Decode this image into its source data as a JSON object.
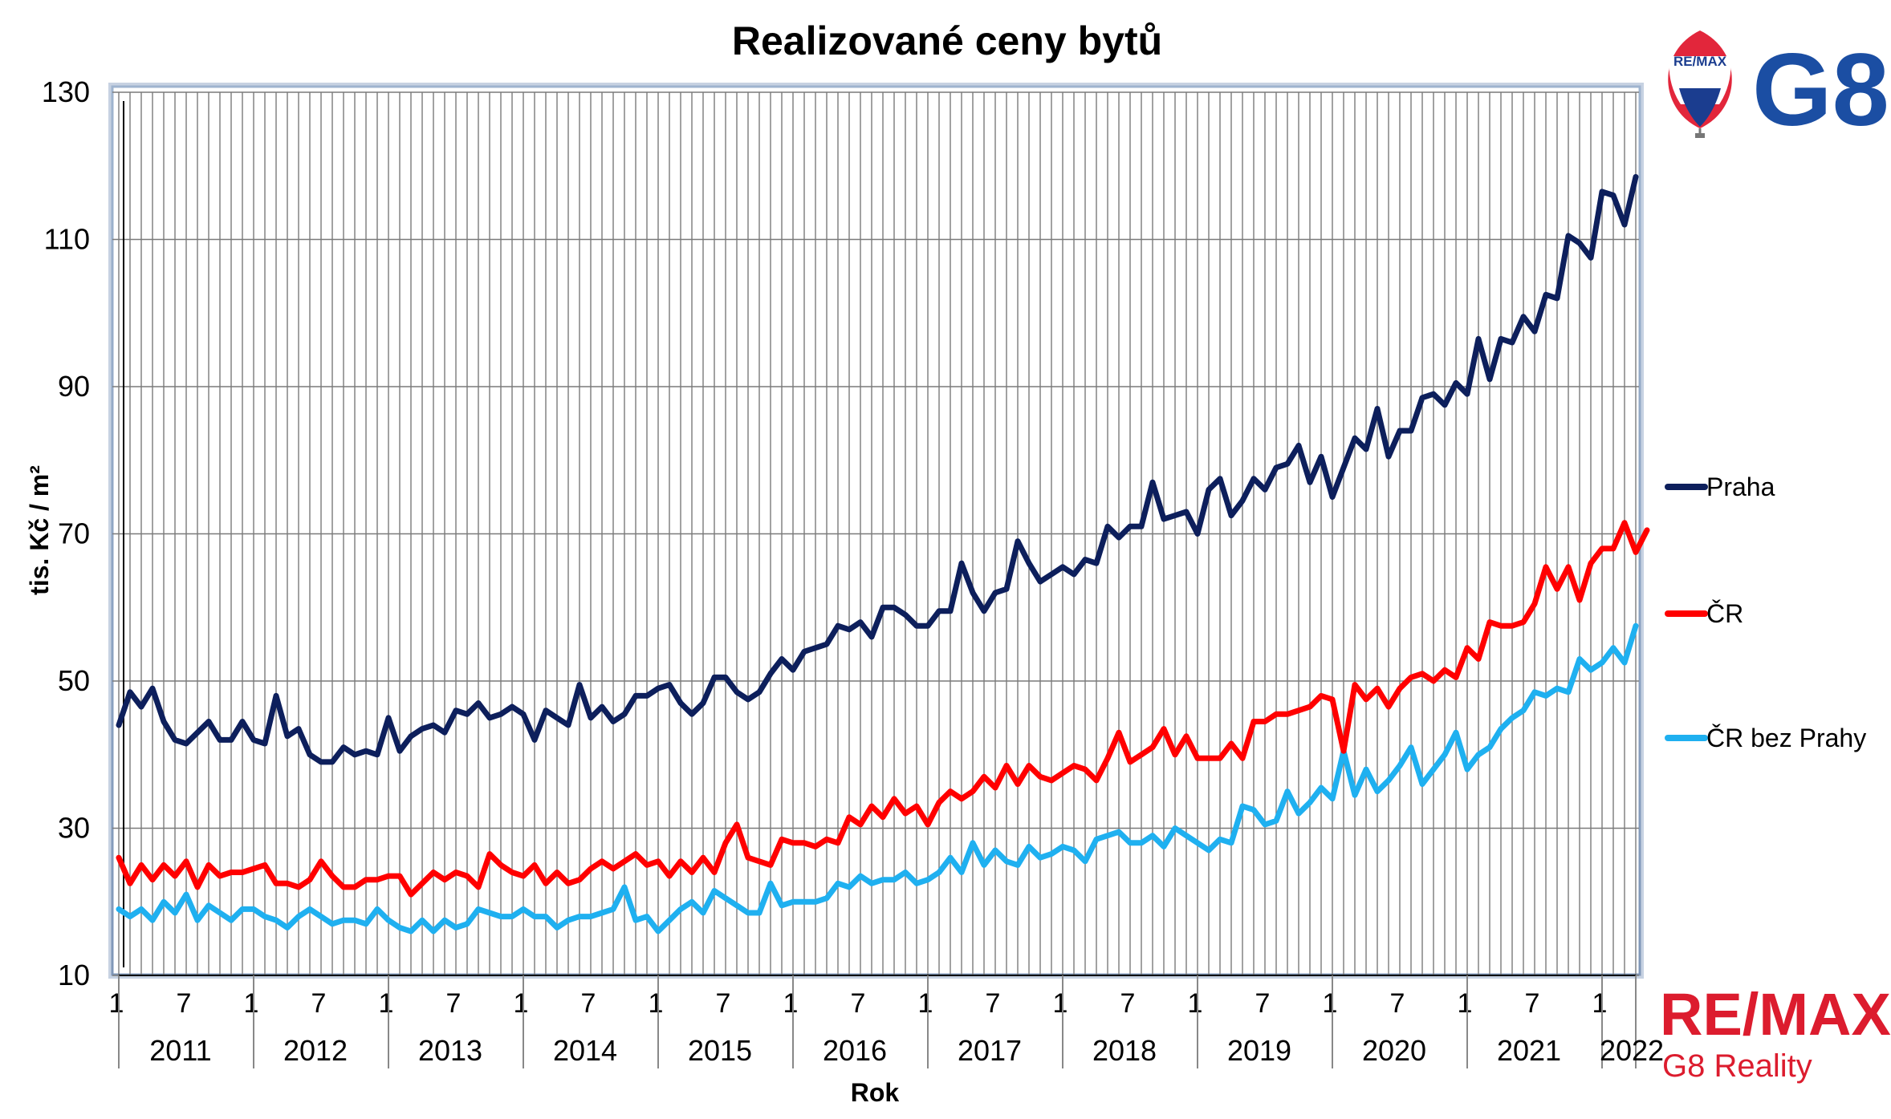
{
  "chart_data": {
    "type": "line",
    "title": "Realizované ceny bytů",
    "xlabel": "Rok",
    "ylabel": "tis. Kč / m²",
    "ylim": [
      10,
      130
    ],
    "yticks": [
      10,
      30,
      50,
      70,
      90,
      110,
      130
    ],
    "grid": true,
    "legend_position": "right",
    "x_month_tick_labels": [
      "1",
      "7"
    ],
    "years": [
      "2011",
      "2012",
      "2013",
      "2014",
      "2015",
      "2016",
      "2017",
      "2018",
      "2019",
      "2020",
      "2021",
      "2022"
    ],
    "x_start": "2011-01",
    "x_end": "2022-04",
    "series": [
      {
        "name": "Praha",
        "color": "#0d1f5c",
        "values": [
          44,
          48.5,
          46.5,
          49,
          44.5,
          42,
          41.5,
          43,
          44.5,
          42,
          42,
          44.5,
          42,
          41.5,
          48,
          42.5,
          43.5,
          40,
          39,
          39,
          41,
          40,
          40.5,
          40,
          45,
          40.5,
          42.5,
          43.5,
          44,
          43,
          46,
          45.5,
          47,
          45,
          45.5,
          46.5,
          45.5,
          42,
          46,
          45,
          44,
          49.5,
          45,
          46.5,
          44.5,
          45.5,
          48,
          48,
          49,
          49.5,
          47,
          45.5,
          47,
          50.5,
          50.5,
          48.5,
          47.5,
          48.5,
          51,
          53,
          51.5,
          54,
          54.5,
          55,
          57.5,
          57,
          58,
          56,
          60,
          60,
          59,
          57.5,
          57.5,
          59.5,
          59.5,
          66,
          62,
          59.5,
          62,
          62.5,
          69,
          66,
          63.5,
          64.5,
          65.5,
          64.5,
          66.5,
          66,
          71,
          69.5,
          71,
          71,
          77,
          72,
          72.5,
          73,
          70,
          76,
          77.5,
          72.5,
          74.5,
          77.5,
          76,
          79,
          79.5,
          82,
          77,
          80.5,
          75,
          79,
          83,
          81.5,
          87,
          80.5,
          84,
          84,
          88.5,
          89,
          87.5,
          90.5,
          89,
          96.5,
          91,
          96.5,
          96,
          99.5,
          97.5,
          102.5,
          102,
          110.5,
          109.5,
          107.5,
          116.5,
          116,
          112,
          118.5
        ]
      },
      {
        "name": "ČR",
        "color": "#ff0000",
        "values": [
          26,
          22.5,
          25,
          23,
          25,
          23.5,
          25.5,
          22,
          25,
          23.5,
          24,
          24,
          24.5,
          25,
          22.5,
          22.5,
          22,
          23,
          25.5,
          23.5,
          22,
          22,
          23,
          23,
          23.5,
          23.5,
          21,
          22.5,
          24,
          23,
          24,
          23.5,
          22,
          26.5,
          25,
          24,
          23.5,
          25,
          22.5,
          24,
          22.5,
          23,
          24.5,
          25.5,
          24.5,
          25.5,
          26.5,
          25,
          25.5,
          23.5,
          25.5,
          24,
          26,
          24,
          28,
          30.5,
          26,
          25.5,
          25,
          28.5,
          28,
          28,
          27.5,
          28.5,
          28,
          31.5,
          30.5,
          33,
          31.5,
          34,
          32,
          33,
          30.5,
          33.5,
          35,
          34,
          35,
          37,
          35.5,
          38.5,
          36,
          38.5,
          37,
          36.5,
          37.5,
          38.5,
          38,
          36.5,
          39.5,
          43,
          39,
          40,
          41,
          43.5,
          40,
          42.5,
          39.5,
          39.5,
          39.5,
          41.5,
          39.5,
          44.5,
          44.5,
          45.5,
          45.5,
          46,
          46.5,
          48,
          47.5,
          40.5,
          49.5,
          47.5,
          49,
          46.5,
          49,
          50.5,
          51,
          50,
          51.5,
          50.5,
          54.5,
          53,
          58,
          57.5,
          57.5,
          58,
          60.5,
          65.5,
          62.5,
          65.5,
          61,
          66,
          68,
          68,
          71.5,
          67.5,
          70.5
        ]
      },
      {
        "name": "ČR bez Prahy",
        "color": "#1fb0f0",
        "values": [
          19,
          18,
          19,
          17.5,
          20,
          18.5,
          21,
          17.5,
          19.5,
          18.5,
          17.5,
          19,
          19,
          18,
          17.5,
          16.5,
          18,
          19,
          18,
          17,
          17.5,
          17.5,
          17,
          19,
          17.5,
          16.5,
          16,
          17.5,
          16,
          17.5,
          16.5,
          17,
          19,
          18.5,
          18,
          18,
          19,
          18,
          18,
          16.5,
          17.5,
          18,
          18,
          18.5,
          19,
          22,
          17.5,
          18,
          16,
          17.5,
          19,
          20,
          18.5,
          21.5,
          20.5,
          19.5,
          18.5,
          18.5,
          22.5,
          19.5,
          20,
          20,
          20,
          20.5,
          22.5,
          22,
          23.5,
          22.5,
          23,
          23,
          24,
          22.5,
          23,
          24,
          26,
          24,
          28,
          25,
          27,
          25.5,
          25,
          27.5,
          26,
          26.5,
          27.5,
          27,
          25.5,
          28.5,
          29,
          29.5,
          28,
          28,
          29,
          27.5,
          30,
          29,
          28,
          27,
          28.5,
          28,
          33,
          32.5,
          30.5,
          31,
          35,
          32,
          33.5,
          35.5,
          34,
          40.5,
          34.5,
          38,
          35,
          36.5,
          38.5,
          41,
          36,
          38,
          40,
          43,
          38,
          40,
          41,
          43.5,
          45,
          46,
          48.5,
          48,
          49,
          48.5,
          53,
          51.5,
          52.5,
          54.5,
          52.5,
          57.5
        ]
      }
    ]
  },
  "logos": {
    "balloon_text": "RE/MAX",
    "g8_text": "G8",
    "remax_text": "RE/MAX",
    "remax_sub": "G8 Reality"
  }
}
